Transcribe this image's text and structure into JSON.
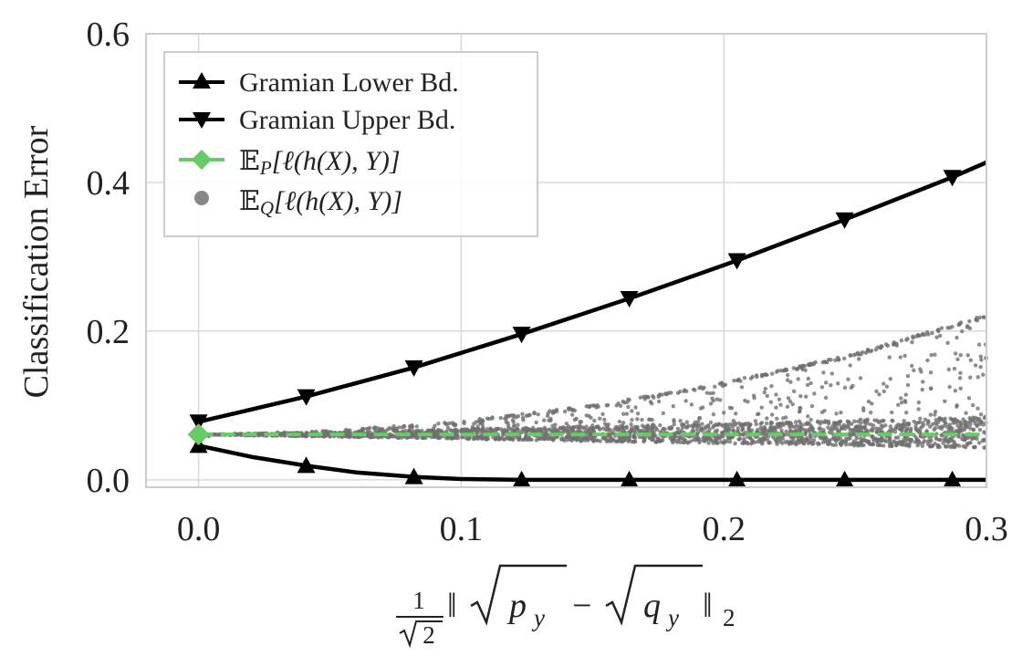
{
  "chart_data": {
    "type": "line",
    "title": "",
    "xlabel": "",
    "ylabel": "Classification Error",
    "xlim": [
      -0.02,
      0.3
    ],
    "ylim": [
      -0.01,
      0.6
    ],
    "x_ticks": [
      0.0,
      0.1,
      0.2,
      0.3
    ],
    "x_tick_labels": [
      "0.0",
      "0.1",
      "0.2",
      "0.3"
    ],
    "y_ticks": [
      0.0,
      0.2,
      0.4,
      0.6
    ],
    "y_tick_labels": [
      "0.0",
      "0.2",
      "0.4",
      "0.6"
    ],
    "grid": true,
    "legend_position": "top-left",
    "series": [
      {
        "name": "Gramian Lower Bd.",
        "kind": "line",
        "marker": "triangle-up",
        "color": "#000000",
        "x": [
          0.0,
          0.041,
          0.082,
          0.123,
          0.164,
          0.205,
          0.246,
          0.287
        ],
        "y": [
          0.046,
          0.019,
          0.004,
          0.0,
          0.0,
          0.0,
          0.0,
          0.0
        ],
        "curve_x": [
          0.0,
          0.02,
          0.041,
          0.06,
          0.082,
          0.1,
          0.123,
          0.3
        ],
        "curve_y": [
          0.046,
          0.031,
          0.019,
          0.01,
          0.004,
          0.001,
          0.0,
          0.0
        ]
      },
      {
        "name": "Gramian Upper Bd.",
        "kind": "line",
        "marker": "triangle-down",
        "color": "#000000",
        "x": [
          0.0,
          0.041,
          0.082,
          0.123,
          0.164,
          0.205,
          0.246,
          0.287
        ],
        "y": [
          0.078,
          0.112,
          0.151,
          0.196,
          0.244,
          0.295,
          0.35,
          0.407
        ],
        "curve_x": [
          0.0,
          0.041,
          0.082,
          0.123,
          0.164,
          0.205,
          0.246,
          0.287,
          0.3
        ],
        "curve_y": [
          0.078,
          0.112,
          0.151,
          0.196,
          0.244,
          0.295,
          0.35,
          0.407,
          0.427
        ]
      },
      {
        "name": "𝔼P[ℓ(h(X), Y)]",
        "kind": "dashed-line",
        "marker": "diamond",
        "color": "#66cc66",
        "x": [
          0.0,
          0.3
        ],
        "y": [
          0.061,
          0.061
        ]
      },
      {
        "name": "𝔼Q[ℓ(h(X), Y)]",
        "kind": "scatter",
        "marker": "circle",
        "color": "#707070",
        "band_x": [
          0.0,
          0.05,
          0.1,
          0.15,
          0.2,
          0.25,
          0.3
        ],
        "upper_edge_y": [
          0.061,
          0.066,
          0.079,
          0.1,
          0.131,
          0.17,
          0.222
        ],
        "dense_low_y": [
          0.061,
          0.058,
          0.055,
          0.052,
          0.049,
          0.046,
          0.043
        ],
        "dense_high_y": [
          0.061,
          0.064,
          0.068,
          0.072,
          0.076,
          0.08,
          0.085
        ]
      }
    ],
    "legend": [
      {
        "label": "Gramian Lower Bd.",
        "marker": "triangle-up",
        "color": "#000000"
      },
      {
        "label": "Gramian Upper Bd.",
        "marker": "triangle-down",
        "color": "#000000"
      },
      {
        "label_prefix": "𝔼",
        "label_sub": "P",
        "label_rest": "[ℓ(h(X), Y)]",
        "marker": "diamond",
        "color": "#66cc66"
      },
      {
        "label_prefix": "𝔼",
        "label_sub": "Q",
        "label_rest": "[ℓ(h(X), Y)]",
        "marker": "circle",
        "color": "#888888"
      }
    ],
    "xlabel_math": {
      "frac_num": "1",
      "frac_den": "2",
      "norm_left": "‖",
      "sqrt1": "p",
      "sub1": "y",
      "minus": "−",
      "sqrt2": "q",
      "sub2": "y",
      "norm_right": "‖",
      "norm_sub": "2"
    }
  }
}
